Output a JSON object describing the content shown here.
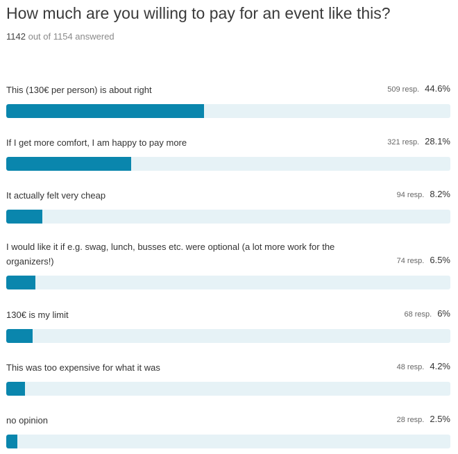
{
  "question": {
    "title": "How much are you willing to pay for an event like this?",
    "answered_count": "1142",
    "answered_suffix": "out of 1154 answered"
  },
  "colors": {
    "bar_fill": "#0a86ad",
    "bar_track": "#e6f2f6"
  },
  "options": [
    {
      "label": "This (130€ per person) is about right",
      "responses": "509 resp.",
      "percent_text": "44.6%",
      "percent": 44.6
    },
    {
      "label": "If I get more comfort, I am happy to pay more",
      "responses": "321 resp.",
      "percent_text": "28.1%",
      "percent": 28.1
    },
    {
      "label": "It actually felt very cheap",
      "responses": "94 resp.",
      "percent_text": "8.2%",
      "percent": 8.2
    },
    {
      "label": "I would like it if e.g. swag, lunch, busses etc. were optional (a lot more work for the organizers!)",
      "responses": "74 resp.",
      "percent_text": "6.5%",
      "percent": 6.5
    },
    {
      "label": "130€ is my limit",
      "responses": "68 resp.",
      "percent_text": "6%",
      "percent": 6
    },
    {
      "label": "This was too expensive for what it was",
      "responses": "48 resp.",
      "percent_text": "4.2%",
      "percent": 4.2
    },
    {
      "label": "no opinion",
      "responses": "28 resp.",
      "percent_text": "2.5%",
      "percent": 2.5
    }
  ]
}
